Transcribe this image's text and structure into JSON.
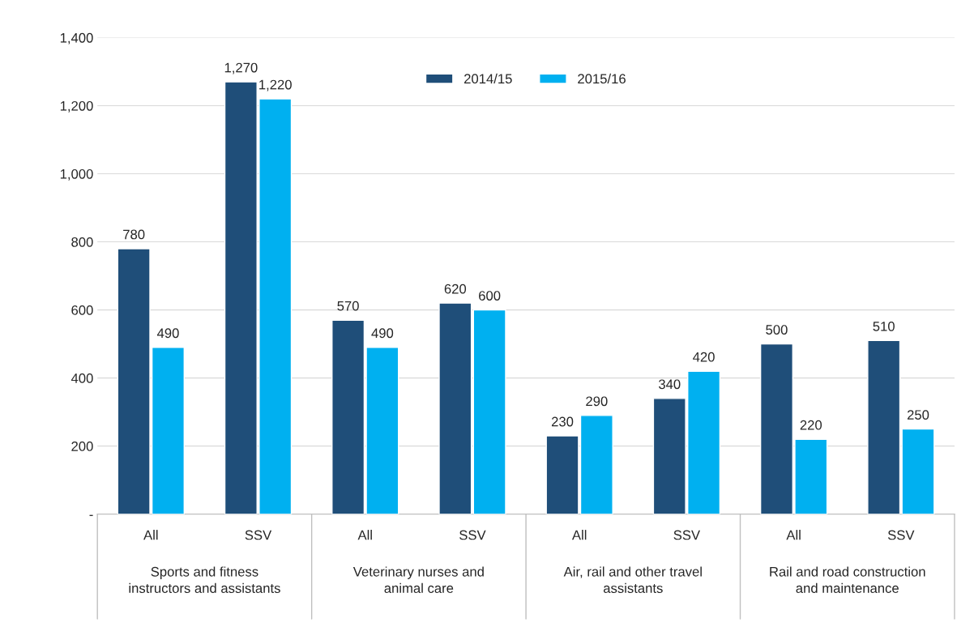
{
  "chart_data": {
    "type": "bar",
    "categories": [
      "All",
      "SSV",
      "All",
      "SSV",
      "All",
      "SSV",
      "All",
      "SSV"
    ],
    "annotations": [
      "Sports and fitness\ninstructors and assistants",
      "Veterinary nurses and\nanimal care",
      "Air, rail and other travel\nassistants",
      "Rail and road construction\nand maintenance"
    ],
    "series": [
      {
        "name": "2014/15",
        "color": "#1f4e79",
        "values": [
          780,
          1270,
          570,
          620,
          230,
          340,
          500,
          510
        ],
        "value_labels": [
          "780",
          "1,270",
          "570",
          "620",
          "230",
          "340",
          "500",
          "510"
        ]
      },
      {
        "name": "2015/16",
        "color": "#00b0f0",
        "values": [
          490,
          1220,
          490,
          600,
          290,
          420,
          220,
          250
        ],
        "value_labels": [
          "490",
          "1,220",
          "490",
          "600",
          "290",
          "420",
          "220",
          "250"
        ]
      }
    ],
    "ylim": [
      0,
      1400
    ],
    "yticks": [
      {
        "value": 0,
        "label": "-"
      },
      {
        "value": 200,
        "label": "200"
      },
      {
        "value": 400,
        "label": "400"
      },
      {
        "value": 600,
        "label": "600"
      },
      {
        "value": 800,
        "label": "800"
      },
      {
        "value": 1000,
        "label": "1,000"
      },
      {
        "value": 1200,
        "label": "1,200"
      },
      {
        "value": 1400,
        "label": "1,400"
      }
    ],
    "grid": "y",
    "legend": "top"
  }
}
